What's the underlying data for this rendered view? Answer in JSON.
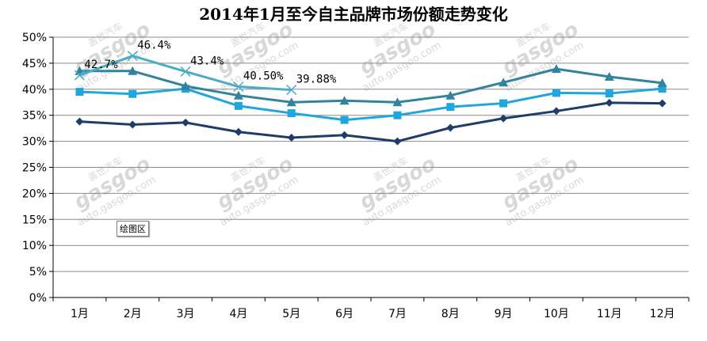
{
  "chart_data": {
    "type": "line",
    "title": "2014年1月至今自主品牌市场份额走势变化",
    "categories": [
      "1月",
      "2月",
      "3月",
      "4月",
      "5月",
      "6月",
      "7月",
      "8月",
      "9月",
      "10月",
      "11月",
      "12月"
    ],
    "ylim": [
      0,
      50
    ],
    "y_ticks": [
      "0%",
      "5%",
      "10%",
      "15%",
      "20%",
      "25%",
      "30%",
      "35%",
      "40%",
      "45%",
      "50%"
    ],
    "grid": "horizontal",
    "legend": "none",
    "series": [
      {
        "marker": "x",
        "color": "#4bacc6",
        "values": [
          42.7,
          46.4,
          43.4,
          40.5,
          39.88,
          null,
          null,
          null,
          null,
          null,
          null,
          null
        ],
        "data_labels": [
          "42.7%",
          "46.4%",
          "43.4%",
          "40.50%",
          "39.88%"
        ]
      },
      {
        "marker": "triangle",
        "color": "#31849b",
        "values": [
          43.5,
          43.5,
          40.6,
          38.8,
          37.5,
          37.8,
          37.5,
          38.8,
          41.3,
          43.9,
          42.4,
          41.2
        ]
      },
      {
        "marker": "square",
        "color": "#1fa6dc",
        "values": [
          39.5,
          39.1,
          40.1,
          36.8,
          35.4,
          34.1,
          35.0,
          36.6,
          37.3,
          39.3,
          39.2,
          40.1
        ]
      },
      {
        "marker": "diamond",
        "color": "#1f3d6b",
        "values": [
          33.8,
          33.2,
          33.6,
          31.8,
          30.7,
          31.2,
          30.0,
          32.6,
          34.4,
          35.8,
          37.4,
          37.3
        ]
      }
    ]
  },
  "ui": {
    "plot_area_tooltip": "绘图区"
  },
  "watermark": {
    "logo": "gasgoo",
    "cn": "盖世汽车",
    "url": "auto.gasgoo.com"
  }
}
